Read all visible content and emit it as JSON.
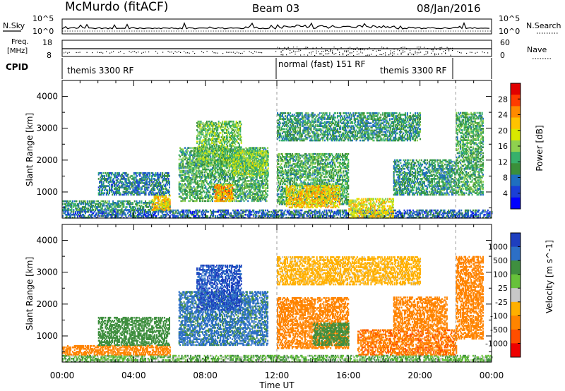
{
  "header": {
    "station": "McMurdo (fitACF)",
    "beam": "Beam 03",
    "date": "08/Jan/2016"
  },
  "top_panels": {
    "nsky_label": "N.Sky",
    "nsearch_label": "N.Search",
    "noise_ticks_left": [
      "10^5",
      "10^0"
    ],
    "noise_ticks_right": [
      "10^5",
      "10^0"
    ],
    "freq_label_1": "Freq.",
    "freq_label_2": "[MHz]",
    "freq_ticks": [
      "18",
      "8"
    ],
    "nave_label": "Nave",
    "nave_ticks": [
      "60",
      "0"
    ],
    "cpid_label": "CPID",
    "cpid_segments": [
      {
        "label": "themis 3300 RF",
        "start_hour": 0,
        "end_hour": 12
      },
      {
        "label": "normal (fast) 151 RF",
        "start_hour": 12,
        "end_hour": 22
      },
      {
        "label": "themis 3300 RF",
        "start_hour": 22,
        "end_hour": 24
      }
    ]
  },
  "x_axis": {
    "label": "Time UT",
    "ticks": [
      "00:00",
      "04:00",
      "08:00",
      "12:00",
      "16:00",
      "20:00",
      "00:00"
    ]
  },
  "chart_data": [
    {
      "type": "heatmap",
      "name": "power",
      "ylabel": "Slant Range [km]",
      "xlabel": "Time UT",
      "xlim": [
        0,
        24
      ],
      "ylim": [
        180,
        4500
      ],
      "yticks": [
        1000,
        2000,
        3000,
        4000
      ],
      "colorbar": {
        "label": "Power [dB]",
        "ticks": [
          "28",
          "24",
          "20",
          "16",
          "12",
          "8",
          "4"
        ],
        "colors": [
          "#e10000",
          "#ff3b00",
          "#ff8a00",
          "#ffc300",
          "#d9e800",
          "#8fd14f",
          "#37b06b",
          "#3a8f3a",
          "#1f6fbf",
          "#1a3fd6",
          "#0000ff"
        ]
      },
      "regions": [
        {
          "t0": 0.0,
          "t1": 24.0,
          "r0": 180,
          "r1": 420,
          "value": 6
        },
        {
          "t0": 0.0,
          "t1": 6.0,
          "r0": 420,
          "r1": 700,
          "value": 10
        },
        {
          "t0": 5.0,
          "t1": 6.0,
          "r0": 420,
          "r1": 900,
          "value": 22
        },
        {
          "t0": 2.0,
          "t1": 6.0,
          "r0": 900,
          "r1": 1600,
          "value": 8
        },
        {
          "t0": 6.5,
          "t1": 11.5,
          "r0": 700,
          "r1": 2400,
          "value": 12
        },
        {
          "t0": 7.5,
          "t1": 10.0,
          "r0": 1800,
          "r1": 3200,
          "value": 14
        },
        {
          "t0": 8.5,
          "t1": 9.5,
          "r0": 700,
          "r1": 1200,
          "value": 24
        },
        {
          "t0": 9.5,
          "t1": 11.5,
          "r0": 1500,
          "r1": 2300,
          "value": 16
        },
        {
          "t0": 12.0,
          "t1": 16.0,
          "r0": 600,
          "r1": 2200,
          "value": 12
        },
        {
          "t0": 12.5,
          "t1": 15.5,
          "r0": 500,
          "r1": 1200,
          "value": 22
        },
        {
          "t0": 12.0,
          "t1": 20.0,
          "r0": 2600,
          "r1": 3500,
          "value": 10
        },
        {
          "t0": 16.0,
          "t1": 18.5,
          "r0": 180,
          "r1": 800,
          "value": 20
        },
        {
          "t0": 18.5,
          "t1": 22.0,
          "r0": 900,
          "r1": 2000,
          "value": 10
        },
        {
          "t0": 22.0,
          "t1": 23.5,
          "r0": 900,
          "r1": 3500,
          "value": 12
        }
      ]
    },
    {
      "type": "heatmap",
      "name": "velocity",
      "ylabel": "Slant Range [km]",
      "xlabel": "Time UT",
      "xlim": [
        0,
        24
      ],
      "ylim": [
        180,
        4500
      ],
      "yticks": [
        1000,
        2000,
        3000,
        4000
      ],
      "colorbar": {
        "label": "Velocity [m s^-1]",
        "ticks": [
          "1000",
          "500",
          "100",
          "25",
          "-25",
          "-100",
          "-500",
          "-1000"
        ],
        "colors": [
          "#1e3fbf",
          "#2c6fc6",
          "#3f8f3f",
          "#67c23a",
          "#c8c8c8",
          "#ffb000",
          "#ff8400",
          "#ff4e00",
          "#ee0000"
        ]
      },
      "regions": [
        {
          "t0": 0.0,
          "t1": 24.0,
          "r0": 180,
          "r1": 400,
          "value": 50
        },
        {
          "t0": 0.0,
          "t1": 6.0,
          "r0": 400,
          "r1": 700,
          "value": -300
        },
        {
          "t0": 2.0,
          "t1": 6.0,
          "r0": 700,
          "r1": 1600,
          "value": 200
        },
        {
          "t0": 6.5,
          "t1": 11.5,
          "r0": 700,
          "r1": 2400,
          "value": 400
        },
        {
          "t0": 7.5,
          "t1": 10.0,
          "r0": 1800,
          "r1": 3200,
          "value": 800
        },
        {
          "t0": 12.0,
          "t1": 16.0,
          "r0": 600,
          "r1": 2200,
          "value": -300
        },
        {
          "t0": 14.0,
          "t1": 16.0,
          "r0": 700,
          "r1": 1400,
          "value": 200
        },
        {
          "t0": 12.0,
          "t1": 20.0,
          "r0": 2600,
          "r1": 3500,
          "value": -60
        },
        {
          "t0": 16.5,
          "t1": 22.0,
          "r0": 400,
          "r1": 1200,
          "value": -400
        },
        {
          "t0": 18.5,
          "t1": 21.5,
          "r0": 1200,
          "r1": 2200,
          "value": -300
        },
        {
          "t0": 22.0,
          "t1": 23.5,
          "r0": 900,
          "r1": 3500,
          "value": -200
        }
      ]
    }
  ]
}
